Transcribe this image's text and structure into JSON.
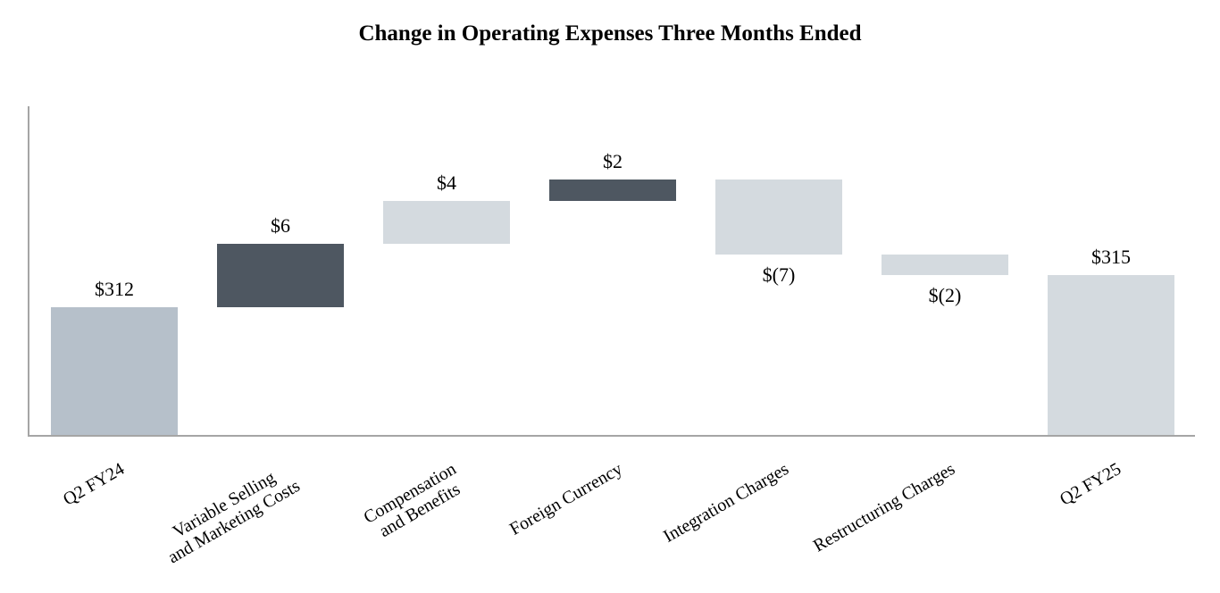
{
  "title": "Change in Operating Expenses Three Months Ended",
  "chart_data": {
    "type": "waterfall",
    "title": "Change in Operating Expenses Three Months Ended",
    "xlabel": "",
    "ylabel": "",
    "ylim": [
      300,
      331
    ],
    "grid": false,
    "legend": false,
    "axis_lines": {
      "y_axis": true,
      "x_axis": true,
      "ticks": false
    },
    "categories": [
      "Q2 FY24",
      "Variable Selling and Marketing Costs",
      "Compensation and Benefits",
      "Foreign Currency",
      "Integration Charges",
      "Restructuring Charges",
      "Q2 FY25"
    ],
    "bars": [
      {
        "id": "q2-fy24",
        "category": "Q2 FY24",
        "category_lines": [
          "Q2 FY24"
        ],
        "label": "$312",
        "value": 312,
        "kind": "total",
        "start": 300,
        "end": 312,
        "color": "medium",
        "label_position": "above"
      },
      {
        "id": "variable-selling-marketing",
        "category": "Variable Selling and Marketing Costs",
        "category_lines": [
          "Variable Selling",
          "and Marketing Costs"
        ],
        "label": "$6",
        "value": 6,
        "kind": "increase",
        "start": 312,
        "end": 318,
        "color": "dark",
        "label_position": "above"
      },
      {
        "id": "compensation-benefits",
        "category": "Compensation and Benefits",
        "category_lines": [
          "Compensation",
          "and Benefits"
        ],
        "label": "$4",
        "value": 4,
        "kind": "increase",
        "start": 318,
        "end": 322,
        "color": "light",
        "label_position": "above"
      },
      {
        "id": "foreign-currency",
        "category": "Foreign Currency",
        "category_lines": [
          "Foreign Currency"
        ],
        "label": "$2",
        "value": 2,
        "kind": "increase",
        "start": 322,
        "end": 324,
        "color": "dark",
        "label_position": "above"
      },
      {
        "id": "integration-charges",
        "category": "Integration Charges",
        "category_lines": [
          "Integration Charges"
        ],
        "label": "$(7)",
        "value": -7,
        "kind": "decrease",
        "start": 324,
        "end": 317,
        "color": "light",
        "label_position": "below"
      },
      {
        "id": "restructuring-charges",
        "category": "Restructuring Charges",
        "category_lines": [
          "Restructuring Charges"
        ],
        "label": "$(2)",
        "value": -2,
        "kind": "decrease",
        "start": 317,
        "end": 315,
        "color": "light",
        "label_position": "below"
      },
      {
        "id": "q2-fy25",
        "category": "Q2 FY25",
        "category_lines": [
          "Q2 FY25"
        ],
        "label": "$315",
        "value": 315,
        "kind": "total",
        "start": 300,
        "end": 315,
        "color": "light",
        "label_position": "above"
      }
    ],
    "colors": {
      "medium": "#b6c0ca",
      "dark": "#4e5761",
      "light": "#d4dadf",
      "axis": "#a5a5a5",
      "text": "#000000"
    }
  }
}
